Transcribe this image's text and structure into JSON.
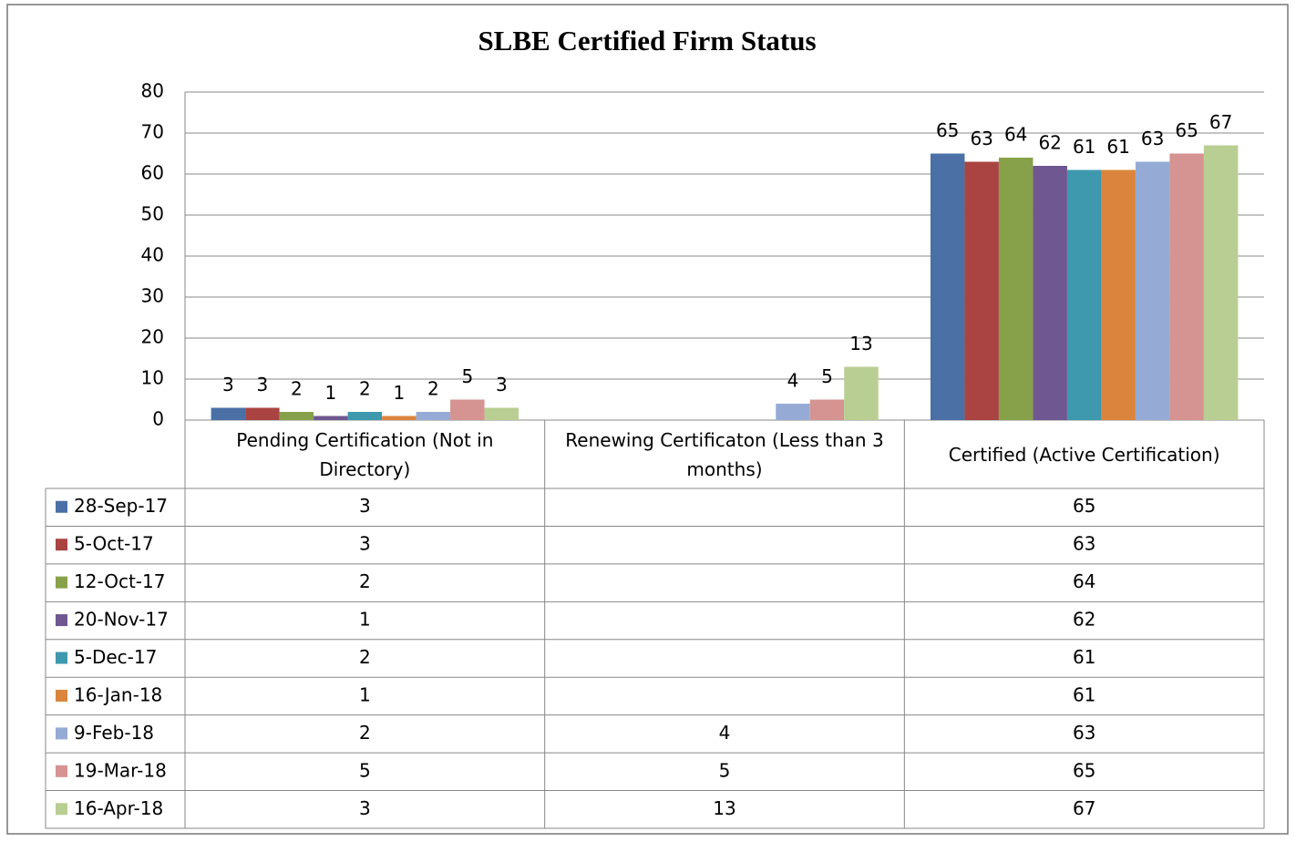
{
  "chart_data": {
    "type": "bar",
    "title": "SLBE Certified Firm Status",
    "categories": [
      "Pending Certification (Not in Directory)",
      "Renewing Certificaton (Less than 3 months)",
      "Certified (Active Certification)"
    ],
    "series": [
      {
        "name": "28-Sep-17",
        "color": "#4a70a6",
        "values": [
          3,
          null,
          65
        ]
      },
      {
        "name": "5-Oct-17",
        "color": "#a94442",
        "values": [
          3,
          null,
          63
        ]
      },
      {
        "name": "12-Oct-17",
        "color": "#87a14a",
        "values": [
          2,
          null,
          64
        ]
      },
      {
        "name": "20-Nov-17",
        "color": "#6f5791",
        "values": [
          1,
          null,
          62
        ]
      },
      {
        "name": "5-Dec-17",
        "color": "#3e98ae",
        "values": [
          2,
          null,
          61
        ]
      },
      {
        "name": "16-Jan-18",
        "color": "#db843d",
        "values": [
          1,
          null,
          61
        ]
      },
      {
        "name": "9-Feb-18",
        "color": "#95abd5",
        "values": [
          2,
          4,
          63
        ]
      },
      {
        "name": "19-Mar-18",
        "color": "#d59392",
        "values": [
          5,
          5,
          65
        ]
      },
      {
        "name": "16-Apr-18",
        "color": "#b9ce93",
        "values": [
          3,
          13,
          67
        ]
      }
    ],
    "ylim": [
      0,
      80
    ],
    "yticks": [
      0,
      10,
      20,
      30,
      40,
      50,
      60,
      70,
      80
    ],
    "grid": true
  }
}
